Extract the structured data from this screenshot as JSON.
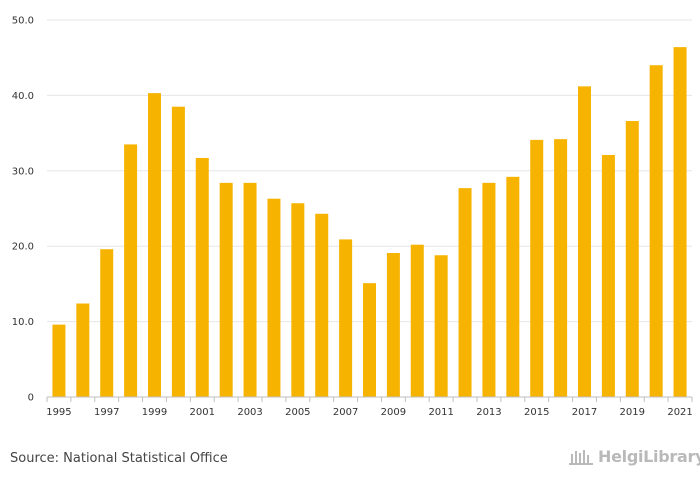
{
  "chart_data": {
    "type": "bar",
    "categories": [
      "1995",
      "1996",
      "1997",
      "1998",
      "1999",
      "2000",
      "2001",
      "2002",
      "2003",
      "2004",
      "2005",
      "2006",
      "2007",
      "2008",
      "2009",
      "2010",
      "2011",
      "2012",
      "2013",
      "2014",
      "2015",
      "2016",
      "2017",
      "2018",
      "2019",
      "2020",
      "2021"
    ],
    "values": [
      9.6,
      12.4,
      19.6,
      33.5,
      40.3,
      38.5,
      31.7,
      28.4,
      28.4,
      26.3,
      25.7,
      24.3,
      20.9,
      15.1,
      19.1,
      20.2,
      18.8,
      27.7,
      28.4,
      29.2,
      34.1,
      34.2,
      41.2,
      32.1,
      36.6,
      44.0,
      46.4
    ],
    "x_tick_labels": [
      "1995",
      "1997",
      "1999",
      "2001",
      "2003",
      "2005",
      "2007",
      "2009",
      "2011",
      "2013",
      "2015",
      "2017",
      "2019",
      "2021"
    ],
    "y_tick_labels": [
      "0",
      "10.0",
      "20.0",
      "30.0",
      "40.0",
      "50.0"
    ],
    "ylim": [
      0,
      50
    ],
    "title": "",
    "xlabel": "",
    "ylabel": "",
    "grid": true,
    "legend": "none",
    "bar_color": "#f6b300"
  },
  "footer": {
    "source": "Source: National Statistical Office",
    "brand": "HelgiLibrary"
  },
  "colors": {
    "bar": "#f6b300",
    "grid": "#e6e6e6",
    "brand": "#b9b9b9"
  }
}
